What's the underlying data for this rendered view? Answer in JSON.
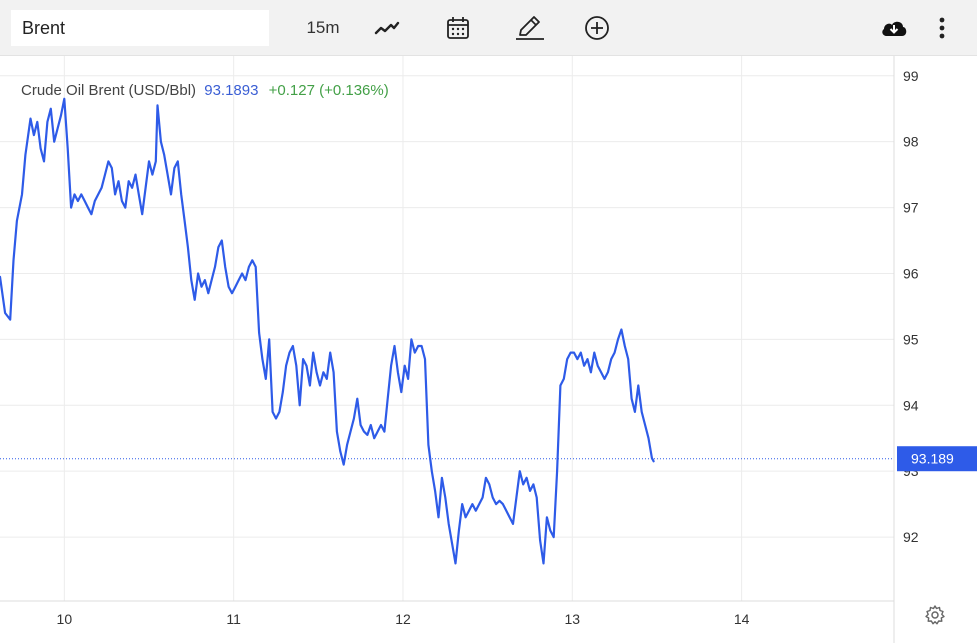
{
  "toolbar": {
    "symbol": "Brent",
    "interval": "15m",
    "icons": [
      "line-chart-icon",
      "calendar-icon",
      "pencil-icon",
      "add-circle-icon",
      "cloud-download-icon",
      "more-vertical-icon",
      "settings-gear-icon"
    ]
  },
  "legend": {
    "name": "Crude Oil Brent (USD/Bbl)",
    "value": "93.1893",
    "change": "+0.127 (+0.136%)"
  },
  "colors": {
    "line": "#2e5be8",
    "last_price_bg": "#2e5be8",
    "change_positive": "#43a047",
    "grid": "#ececec"
  },
  "chart_data": {
    "type": "line",
    "title": "Crude Oil Brent (USD/Bbl)",
    "x_tick_labels": [
      "10",
      "11",
      "12",
      "13",
      "14"
    ],
    "x_range": [
      9.62,
      14.9
    ],
    "ylim": [
      91.03,
      99.3
    ],
    "y_ticks": [
      92,
      93,
      94,
      95,
      96,
      97,
      98,
      99
    ],
    "last_price": 93.189,
    "last_price_label": "93.189",
    "grid": true,
    "series": [
      {
        "points": [
          [
            9.62,
            95.95
          ],
          [
            9.65,
            95.4
          ],
          [
            9.68,
            95.3
          ],
          [
            9.7,
            96.2
          ],
          [
            9.72,
            96.8
          ],
          [
            9.75,
            97.2
          ],
          [
            9.77,
            97.8
          ],
          [
            9.8,
            98.35
          ],
          [
            9.82,
            98.1
          ],
          [
            9.84,
            98.3
          ],
          [
            9.86,
            97.9
          ],
          [
            9.88,
            97.7
          ],
          [
            9.9,
            98.3
          ],
          [
            9.92,
            98.5
          ],
          [
            9.94,
            98.0
          ],
          [
            9.96,
            98.2
          ],
          [
            9.98,
            98.4
          ],
          [
            10.0,
            98.65
          ],
          [
            10.02,
            97.9
          ],
          [
            10.04,
            97.0
          ],
          [
            10.06,
            97.2
          ],
          [
            10.08,
            97.1
          ],
          [
            10.1,
            97.2
          ],
          [
            10.12,
            97.1
          ],
          [
            10.14,
            97.0
          ],
          [
            10.16,
            96.9
          ],
          [
            10.18,
            97.1
          ],
          [
            10.2,
            97.2
          ],
          [
            10.22,
            97.3
          ],
          [
            10.24,
            97.5
          ],
          [
            10.26,
            97.7
          ],
          [
            10.28,
            97.6
          ],
          [
            10.3,
            97.2
          ],
          [
            10.32,
            97.4
          ],
          [
            10.34,
            97.1
          ],
          [
            10.36,
            97.0
          ],
          [
            10.38,
            97.4
          ],
          [
            10.4,
            97.3
          ],
          [
            10.42,
            97.5
          ],
          [
            10.44,
            97.2
          ],
          [
            10.46,
            96.9
          ],
          [
            10.48,
            97.3
          ],
          [
            10.5,
            97.7
          ],
          [
            10.52,
            97.5
          ],
          [
            10.54,
            97.7
          ],
          [
            10.55,
            98.55
          ],
          [
            10.57,
            98.0
          ],
          [
            10.59,
            97.8
          ],
          [
            10.61,
            97.5
          ],
          [
            10.63,
            97.2
          ],
          [
            10.65,
            97.6
          ],
          [
            10.67,
            97.7
          ],
          [
            10.69,
            97.2
          ],
          [
            10.71,
            96.8
          ],
          [
            10.73,
            96.4
          ],
          [
            10.75,
            95.9
          ],
          [
            10.77,
            95.6
          ],
          [
            10.79,
            96.0
          ],
          [
            10.81,
            95.8
          ],
          [
            10.83,
            95.9
          ],
          [
            10.85,
            95.7
          ],
          [
            10.87,
            95.9
          ],
          [
            10.89,
            96.1
          ],
          [
            10.91,
            96.4
          ],
          [
            10.93,
            96.5
          ],
          [
            10.95,
            96.1
          ],
          [
            10.97,
            95.8
          ],
          [
            10.99,
            95.7
          ],
          [
            11.01,
            95.8
          ],
          [
            11.03,
            95.9
          ],
          [
            11.05,
            96.0
          ],
          [
            11.07,
            95.9
          ],
          [
            11.09,
            96.1
          ],
          [
            11.11,
            96.2
          ],
          [
            11.13,
            96.1
          ],
          [
            11.15,
            95.1
          ],
          [
            11.17,
            94.7
          ],
          [
            11.19,
            94.4
          ],
          [
            11.21,
            95.0
          ],
          [
            11.23,
            93.9
          ],
          [
            11.25,
            93.8
          ],
          [
            11.27,
            93.9
          ],
          [
            11.29,
            94.2
          ],
          [
            11.31,
            94.6
          ],
          [
            11.33,
            94.8
          ],
          [
            11.35,
            94.9
          ],
          [
            11.37,
            94.6
          ],
          [
            11.39,
            94.0
          ],
          [
            11.41,
            94.7
          ],
          [
            11.43,
            94.6
          ],
          [
            11.45,
            94.3
          ],
          [
            11.47,
            94.8
          ],
          [
            11.49,
            94.5
          ],
          [
            11.51,
            94.3
          ],
          [
            11.53,
            94.5
          ],
          [
            11.55,
            94.4
          ],
          [
            11.57,
            94.8
          ],
          [
            11.59,
            94.5
          ],
          [
            11.61,
            93.6
          ],
          [
            11.63,
            93.3
          ],
          [
            11.65,
            93.1
          ],
          [
            11.67,
            93.4
          ],
          [
            11.69,
            93.6
          ],
          [
            11.71,
            93.8
          ],
          [
            11.73,
            94.1
          ],
          [
            11.75,
            93.7
          ],
          [
            11.77,
            93.6
          ],
          [
            11.79,
            93.55
          ],
          [
            11.81,
            93.7
          ],
          [
            11.83,
            93.5
          ],
          [
            11.85,
            93.6
          ],
          [
            11.87,
            93.7
          ],
          [
            11.89,
            93.6
          ],
          [
            11.91,
            94.1
          ],
          [
            11.93,
            94.6
          ],
          [
            11.95,
            94.9
          ],
          [
            11.97,
            94.5
          ],
          [
            11.99,
            94.2
          ],
          [
            12.01,
            94.6
          ],
          [
            12.03,
            94.4
          ],
          [
            12.05,
            95.0
          ],
          [
            12.07,
            94.8
          ],
          [
            12.09,
            94.9
          ],
          [
            12.11,
            94.9
          ],
          [
            12.13,
            94.7
          ],
          [
            12.15,
            93.4
          ],
          [
            12.17,
            93.0
          ],
          [
            12.19,
            92.7
          ],
          [
            12.21,
            92.3
          ],
          [
            12.23,
            92.9
          ],
          [
            12.25,
            92.6
          ],
          [
            12.27,
            92.2
          ],
          [
            12.29,
            91.9
          ],
          [
            12.31,
            91.6
          ],
          [
            12.33,
            92.1
          ],
          [
            12.35,
            92.5
          ],
          [
            12.37,
            92.3
          ],
          [
            12.39,
            92.4
          ],
          [
            12.41,
            92.5
          ],
          [
            12.43,
            92.4
          ],
          [
            12.45,
            92.5
          ],
          [
            12.47,
            92.6
          ],
          [
            12.49,
            92.9
          ],
          [
            12.51,
            92.8
          ],
          [
            12.53,
            92.6
          ],
          [
            12.55,
            92.5
          ],
          [
            12.57,
            92.55
          ],
          [
            12.59,
            92.5
          ],
          [
            12.61,
            92.4
          ],
          [
            12.63,
            92.3
          ],
          [
            12.65,
            92.2
          ],
          [
            12.67,
            92.6
          ],
          [
            12.69,
            93.0
          ],
          [
            12.71,
            92.8
          ],
          [
            12.73,
            92.9
          ],
          [
            12.75,
            92.7
          ],
          [
            12.77,
            92.8
          ],
          [
            12.79,
            92.6
          ],
          [
            12.81,
            91.95
          ],
          [
            12.83,
            91.6
          ],
          [
            12.85,
            92.3
          ],
          [
            12.87,
            92.1
          ],
          [
            12.89,
            92.0
          ],
          [
            12.91,
            93.0
          ],
          [
            12.93,
            94.3
          ],
          [
            12.95,
            94.4
          ],
          [
            12.97,
            94.7
          ],
          [
            12.99,
            94.8
          ],
          [
            13.01,
            94.8
          ],
          [
            13.03,
            94.7
          ],
          [
            13.05,
            94.8
          ],
          [
            13.07,
            94.6
          ],
          [
            13.09,
            94.7
          ],
          [
            13.11,
            94.5
          ],
          [
            13.13,
            94.8
          ],
          [
            13.15,
            94.6
          ],
          [
            13.17,
            94.5
          ],
          [
            13.19,
            94.4
          ],
          [
            13.21,
            94.5
          ],
          [
            13.23,
            94.7
          ],
          [
            13.25,
            94.8
          ],
          [
            13.27,
            95.0
          ],
          [
            13.29,
            95.15
          ],
          [
            13.31,
            94.9
          ],
          [
            13.33,
            94.7
          ],
          [
            13.35,
            94.1
          ],
          [
            13.37,
            93.9
          ],
          [
            13.39,
            94.3
          ],
          [
            13.41,
            93.9
          ],
          [
            13.43,
            93.7
          ],
          [
            13.45,
            93.5
          ],
          [
            13.47,
            93.2
          ],
          [
            13.48,
            93.15
          ]
        ]
      }
    ]
  }
}
